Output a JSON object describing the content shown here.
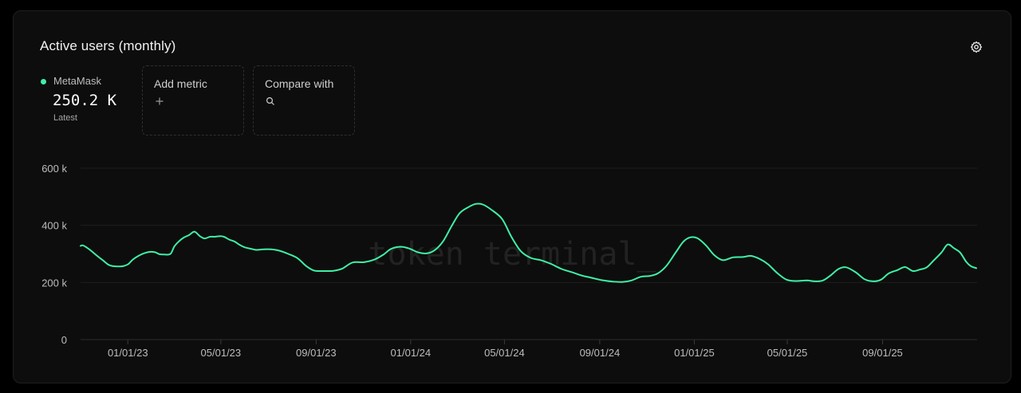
{
  "card": {
    "title": "Active users (monthly)"
  },
  "metric": {
    "name": "MetaMask",
    "value": "250.2 K",
    "sublabel": "Latest",
    "color": "#3ef0a6"
  },
  "add_metric": {
    "label": "Add metric"
  },
  "compare": {
    "label": "Compare with"
  },
  "watermark": "token terminal_",
  "icons": {
    "settings": "gear-icon",
    "add": "plus-icon",
    "search": "search-icon"
  },
  "chart_data": {
    "type": "line",
    "title": "Active users (monthly)",
    "xlabel": "",
    "ylabel": "",
    "x_start": "2022-11-01",
    "x_end": "2026-01-01",
    "ylim": [
      0,
      600000
    ],
    "y_ticks": [
      {
        "value": 0,
        "label": "0"
      },
      {
        "value": 200000,
        "label": "200 k"
      },
      {
        "value": 400000,
        "label": "400 k"
      },
      {
        "value": 600000,
        "label": "600 k"
      }
    ],
    "x_ticks": [
      {
        "date": "2023-01-01",
        "label": "01/01/23"
      },
      {
        "date": "2023-05-01",
        "label": "05/01/23"
      },
      {
        "date": "2023-09-01",
        "label": "09/01/23"
      },
      {
        "date": "2024-01-01",
        "label": "01/01/24"
      },
      {
        "date": "2024-05-01",
        "label": "05/01/24"
      },
      {
        "date": "2024-09-01",
        "label": "09/01/24"
      },
      {
        "date": "2025-01-01",
        "label": "01/01/25"
      },
      {
        "date": "2025-05-01",
        "label": "05/01/25"
      },
      {
        "date": "2025-09-01",
        "label": "09/01/25"
      }
    ],
    "grid": true,
    "series": [
      {
        "name": "MetaMask",
        "color": "#3ef0a6",
        "points": [
          [
            "2022-11-01",
            328000
          ],
          [
            "2022-11-04",
            330000
          ],
          [
            "2022-11-09",
            322000
          ],
          [
            "2022-11-15",
            310000
          ],
          [
            "2022-11-22",
            294000
          ],
          [
            "2022-11-30",
            277000
          ],
          [
            "2022-12-07",
            262000
          ],
          [
            "2022-12-13",
            257000
          ],
          [
            "2022-12-21",
            256000
          ],
          [
            "2022-12-27",
            258000
          ],
          [
            "2023-01-02",
            265000
          ],
          [
            "2023-01-07",
            279000
          ],
          [
            "2023-01-14",
            292000
          ],
          [
            "2023-01-21",
            301000
          ],
          [
            "2023-01-29",
            307000
          ],
          [
            "2023-02-05",
            306000
          ],
          [
            "2023-02-11",
            299000
          ],
          [
            "2023-02-17",
            298000
          ],
          [
            "2023-02-25",
            300000
          ],
          [
            "2023-03-02",
            326000
          ],
          [
            "2023-03-08",
            344000
          ],
          [
            "2023-03-14",
            357000
          ],
          [
            "2023-03-21",
            366000
          ],
          [
            "2023-03-28",
            378000
          ],
          [
            "2023-04-04",
            362000
          ],
          [
            "2023-04-10",
            354000
          ],
          [
            "2023-04-17",
            360000
          ],
          [
            "2023-04-23",
            360000
          ],
          [
            "2023-04-30",
            362000
          ],
          [
            "2023-05-05",
            360000
          ],
          [
            "2023-05-12",
            350000
          ],
          [
            "2023-05-19",
            343000
          ],
          [
            "2023-05-25",
            332000
          ],
          [
            "2023-06-01",
            323000
          ],
          [
            "2023-06-09",
            318000
          ],
          [
            "2023-06-16",
            314000
          ],
          [
            "2023-06-25",
            316000
          ],
          [
            "2023-07-05",
            316000
          ],
          [
            "2023-07-16",
            311000
          ],
          [
            "2023-07-27",
            300000
          ],
          [
            "2023-08-08",
            285000
          ],
          [
            "2023-08-19",
            258000
          ],
          [
            "2023-08-29",
            242000
          ],
          [
            "2023-09-10",
            240000
          ],
          [
            "2023-09-24",
            241000
          ],
          [
            "2023-10-05",
            249000
          ],
          [
            "2023-10-18",
            270000
          ],
          [
            "2023-11-02",
            271000
          ],
          [
            "2023-11-15",
            280000
          ],
          [
            "2023-11-26",
            296000
          ],
          [
            "2023-12-07",
            318000
          ],
          [
            "2023-12-19",
            325000
          ],
          [
            "2023-12-30",
            319000
          ],
          [
            "2024-01-11",
            305000
          ],
          [
            "2024-01-22",
            302000
          ],
          [
            "2024-02-01",
            313000
          ],
          [
            "2024-02-12",
            345000
          ],
          [
            "2024-02-23",
            398000
          ],
          [
            "2024-03-04",
            442000
          ],
          [
            "2024-03-15",
            463000
          ],
          [
            "2024-03-25",
            475000
          ],
          [
            "2024-04-03",
            473000
          ],
          [
            "2024-04-14",
            455000
          ],
          [
            "2024-04-28",
            422000
          ],
          [
            "2024-05-10",
            360000
          ],
          [
            "2024-05-22",
            310000
          ],
          [
            "2024-06-04",
            286000
          ],
          [
            "2024-06-17",
            278000
          ],
          [
            "2024-06-30",
            265000
          ],
          [
            "2024-07-14",
            247000
          ],
          [
            "2024-07-27",
            236000
          ],
          [
            "2024-08-09",
            224000
          ],
          [
            "2024-08-22",
            216000
          ],
          [
            "2024-09-04",
            208000
          ],
          [
            "2024-09-18",
            203000
          ],
          [
            "2024-10-01",
            202000
          ],
          [
            "2024-10-12",
            207000
          ],
          [
            "2024-10-24",
            220000
          ],
          [
            "2024-11-05",
            223000
          ],
          [
            "2024-11-15",
            232000
          ],
          [
            "2024-11-26",
            258000
          ],
          [
            "2024-12-08",
            305000
          ],
          [
            "2024-12-18",
            343000
          ],
          [
            "2024-12-27",
            358000
          ],
          [
            "2025-01-05",
            355000
          ],
          [
            "2025-01-16",
            330000
          ],
          [
            "2025-01-27",
            295000
          ],
          [
            "2025-02-07",
            278000
          ],
          [
            "2025-02-20",
            288000
          ],
          [
            "2025-03-05",
            289000
          ],
          [
            "2025-03-15",
            293000
          ],
          [
            "2025-03-26",
            283000
          ],
          [
            "2025-04-06",
            264000
          ],
          [
            "2025-04-18",
            233000
          ],
          [
            "2025-04-30",
            210000
          ],
          [
            "2025-05-12",
            205000
          ],
          [
            "2025-05-26",
            207000
          ],
          [
            "2025-06-06",
            204000
          ],
          [
            "2025-06-16",
            207000
          ],
          [
            "2025-06-26",
            225000
          ],
          [
            "2025-07-06",
            247000
          ],
          [
            "2025-07-16",
            253000
          ],
          [
            "2025-07-28",
            236000
          ],
          [
            "2025-08-09",
            211000
          ],
          [
            "2025-08-20",
            204000
          ],
          [
            "2025-08-30",
            210000
          ],
          [
            "2025-09-09",
            232000
          ],
          [
            "2025-09-20",
            243000
          ],
          [
            "2025-09-30",
            254000
          ],
          [
            "2025-10-10",
            240000
          ],
          [
            "2025-10-19",
            245000
          ],
          [
            "2025-10-28",
            253000
          ],
          [
            "2025-11-06",
            277000
          ],
          [
            "2025-11-16",
            305000
          ],
          [
            "2025-11-24",
            333000
          ],
          [
            "2025-12-02",
            320000
          ],
          [
            "2025-12-10",
            305000
          ],
          [
            "2025-12-18",
            272000
          ],
          [
            "2025-12-24",
            257000
          ],
          [
            "2025-12-31",
            250000
          ]
        ]
      }
    ]
  }
}
